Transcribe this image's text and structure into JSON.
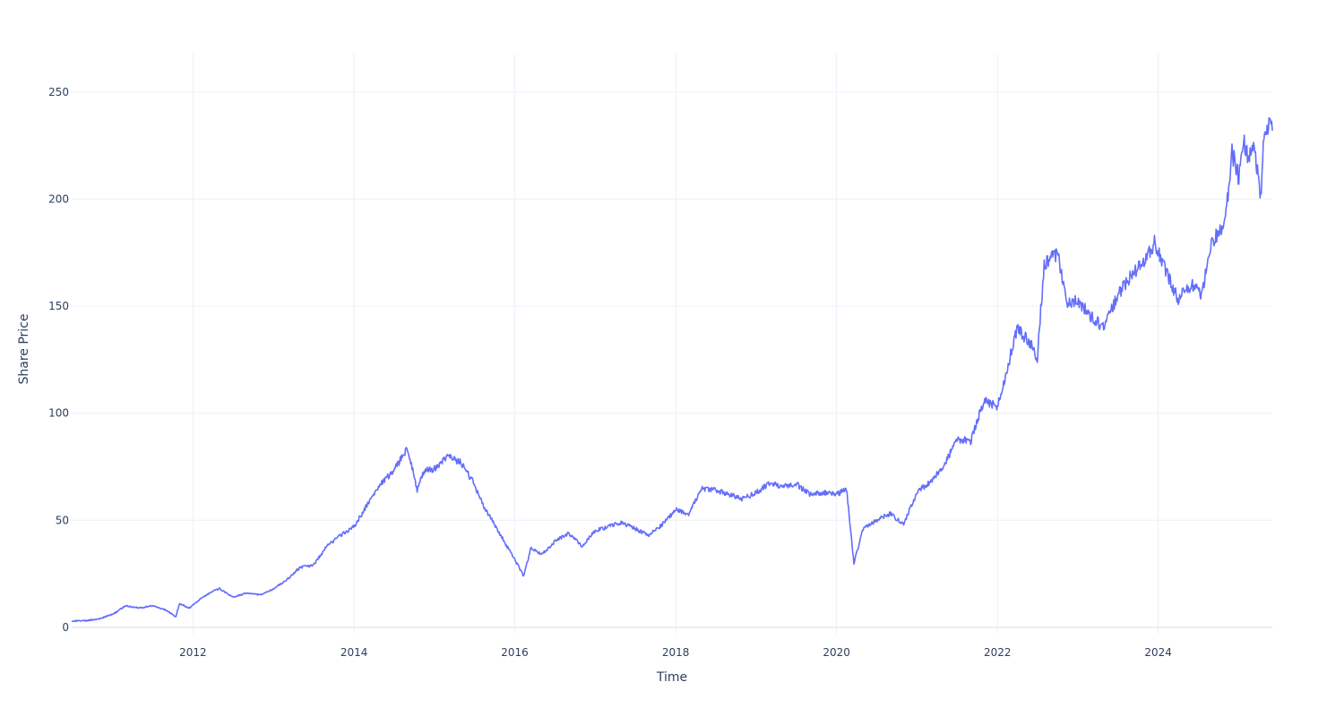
{
  "chart_data": {
    "type": "line",
    "title": "",
    "xlabel": "Time",
    "ylabel": "Share Price",
    "xlim": [
      "2010-06-29",
      "2025-06-02"
    ],
    "ylim": [
      -3,
      268
    ],
    "x_ticks": [
      "2012",
      "2014",
      "2016",
      "2018",
      "2020",
      "2022",
      "2024"
    ],
    "y_ticks": [
      "0",
      "50",
      "100",
      "150",
      "200",
      "250"
    ],
    "grid": true,
    "legend": "none",
    "series": [
      {
        "color": "#636efa",
        "x": [
          "2010-06-29",
          "2010-09-01",
          "2010-11-01",
          "2011-01-01",
          "2011-03-01",
          "2011-05-01",
          "2011-07-01",
          "2011-09-01",
          "2011-10-15",
          "2011-11-01",
          "2011-12-15",
          "2012-02-01",
          "2012-04-01",
          "2012-05-01",
          "2012-07-01",
          "2012-09-01",
          "2012-11-01",
          "2013-01-01",
          "2013-03-01",
          "2013-05-01",
          "2013-07-01",
          "2013-09-01",
          "2013-11-01",
          "2014-01-01",
          "2014-03-01",
          "2014-05-01",
          "2014-07-01",
          "2014-09-01",
          "2014-10-15",
          "2014-11-15",
          "2015-01-01",
          "2015-03-01",
          "2015-05-01",
          "2015-07-01",
          "2015-08-15",
          "2015-10-01",
          "2015-12-01",
          "2016-01-15",
          "2016-02-10",
          "2016-03-15",
          "2016-05-01",
          "2016-07-01",
          "2016-09-01",
          "2016-11-01",
          "2017-01-01",
          "2017-03-01",
          "2017-05-01",
          "2017-07-01",
          "2017-09-01",
          "2017-11-01",
          "2018-01-01",
          "2018-03-01",
          "2018-05-01",
          "2018-07-01",
          "2018-09-01",
          "2018-11-01",
          "2019-01-01",
          "2019-03-01",
          "2019-05-01",
          "2019-07-01",
          "2019-09-01",
          "2019-11-01",
          "2020-01-01",
          "2020-02-15",
          "2020-03-20",
          "2020-05-01",
          "2020-07-01",
          "2020-09-01",
          "2020-11-01",
          "2021-01-01",
          "2021-03-01",
          "2021-05-01",
          "2021-07-01",
          "2021-09-01",
          "2021-11-01",
          "2022-01-01",
          "2022-02-01",
          "2022-04-01",
          "2022-06-01",
          "2022-07-01",
          "2022-08-01",
          "2022-10-01",
          "2022-11-15",
          "2023-01-01",
          "2023-03-01",
          "2023-05-01",
          "2023-07-01",
          "2023-09-01",
          "2023-11-01",
          "2023-12-15",
          "2024-02-01",
          "2024-04-01",
          "2024-06-01",
          "2024-07-15",
          "2024-09-01",
          "2024-11-01",
          "2024-12-01",
          "2025-01-01",
          "2025-01-20",
          "2025-02-15",
          "2025-03-15",
          "2025-04-10",
          "2025-04-25",
          "2025-05-15",
          "2025-06-02"
        ],
        "y": [
          3,
          3,
          4,
          6,
          10,
          9,
          10,
          8,
          5,
          11,
          9,
          13,
          17,
          18,
          14,
          16,
          15,
          18,
          22,
          28,
          29,
          38,
          43,
          47,
          57,
          67,
          73,
          84,
          64,
          73,
          74,
          80,
          77,
          67,
          56,
          48,
          37,
          29,
          24,
          37,
          34,
          40,
          44,
          38,
          45,
          47,
          49,
          46,
          43,
          48,
          55,
          53,
          65,
          64,
          62,
          60,
          63,
          67,
          66,
          67,
          62,
          63,
          62,
          65,
          30,
          46,
          50,
          53,
          48,
          63,
          68,
          75,
          88,
          87,
          106,
          103,
          115,
          140,
          132,
          126,
          170,
          175,
          152,
          153,
          145,
          140,
          155,
          165,
          170,
          180,
          167,
          153,
          160,
          155,
          180,
          190,
          222,
          210,
          228,
          219,
          224,
          200,
          232,
          235,
          232
        ]
      }
    ]
  }
}
